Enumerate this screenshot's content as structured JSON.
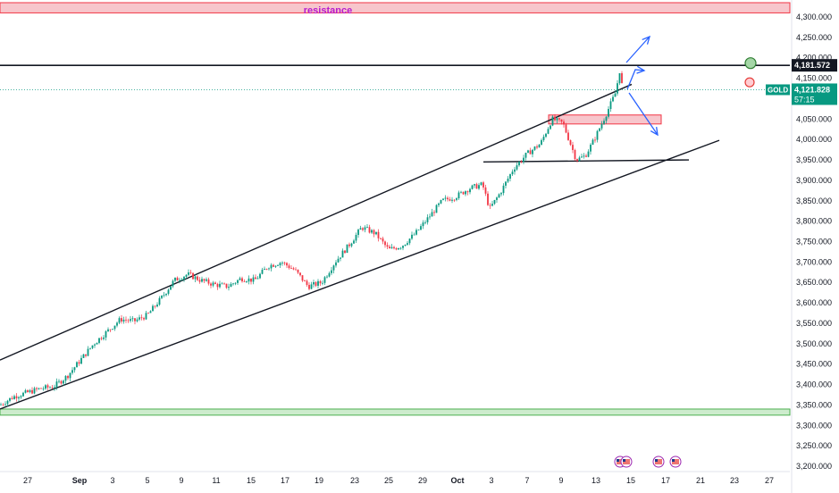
{
  "chart_data": {
    "type": "candlestick",
    "symbol": "GOLD",
    "ylim": [
      3200,
      4350
    ],
    "y_ticks": [
      "4,300.000",
      "4,250.000",
      "4,200.000",
      "4,150.000",
      "4,100.000",
      "4,050.000",
      "4,000.000",
      "3,950.000",
      "3,900.000",
      "3,850.000",
      "3,800.000",
      "3,750.000",
      "3,700.000",
      "3,650.000",
      "3,600.000",
      "3,550.000",
      "3,500.000",
      "3,450.000",
      "3,400.000",
      "3,350.000",
      "3,300.000",
      "3,250.000",
      "3,200.000"
    ],
    "x_ticks": [
      "27",
      "Sep",
      "3",
      "5",
      "9",
      "11",
      "15",
      "17",
      "19",
      "23",
      "25",
      "29",
      "Oct",
      "3",
      "7",
      "9",
      "13",
      "15",
      "17",
      "21",
      "23",
      "27"
    ],
    "horizontal_line": {
      "price": 4181.572,
      "label": "4,181.572"
    },
    "current_price": {
      "price": 4121.828,
      "label": "4,121.828",
      "countdown": "57:15",
      "symbol": "GOLD"
    },
    "zones": [
      {
        "name": "resistance",
        "label": "resistance",
        "low": 4310,
        "high": 4335,
        "color": "#f7c6cc"
      },
      {
        "name": "support",
        "label": "",
        "low": 3325,
        "high": 3340,
        "color": "#cdeccd"
      },
      {
        "name": "retest",
        "label": "",
        "low": 4038,
        "high": 4060,
        "color": "#f7c6cc"
      }
    ],
    "trendlines": [
      {
        "name": "upper-channel",
        "from": [
          0,
          3460
        ],
        "to": [
          707,
          4135
        ]
      },
      {
        "name": "lower-channel",
        "from": [
          0,
          3340
        ],
        "to": [
          805,
          3998
        ]
      },
      {
        "name": "flat-support",
        "from": [
          541,
          3945
        ],
        "to": [
          771,
          3950
        ]
      }
    ],
    "candle_path": [
      [
        0,
        3350
      ],
      [
        15,
        3370
      ],
      [
        30,
        3380
      ],
      [
        45,
        3390
      ],
      [
        60,
        3395
      ],
      [
        75,
        3420
      ],
      [
        90,
        3460
      ],
      [
        105,
        3500
      ],
      [
        120,
        3530
      ],
      [
        135,
        3560
      ],
      [
        150,
        3555
      ],
      [
        165,
        3570
      ],
      [
        180,
        3610
      ],
      [
        195,
        3655
      ],
      [
        210,
        3670
      ],
      [
        225,
        3655
      ],
      [
        240,
        3645
      ],
      [
        255,
        3640
      ],
      [
        270,
        3660
      ],
      [
        285,
        3655
      ],
      [
        300,
        3690
      ],
      [
        315,
        3700
      ],
      [
        330,
        3680
      ],
      [
        345,
        3640
      ],
      [
        360,
        3650
      ],
      [
        375,
        3700
      ],
      [
        390,
        3740
      ],
      [
        405,
        3785
      ],
      [
        420,
        3770
      ],
      [
        435,
        3730
      ],
      [
        450,
        3740
      ],
      [
        465,
        3770
      ],
      [
        480,
        3810
      ],
      [
        495,
        3850
      ],
      [
        510,
        3860
      ],
      [
        525,
        3880
      ],
      [
        540,
        3890
      ],
      [
        548,
        3830
      ],
      [
        560,
        3870
      ],
      [
        575,
        3930
      ],
      [
        590,
        3965
      ],
      [
        605,
        3990
      ],
      [
        618,
        4050
      ],
      [
        630,
        4040
      ],
      [
        645,
        3950
      ],
      [
        655,
        3960
      ],
      [
        665,
        4000
      ],
      [
        678,
        4060
      ],
      [
        690,
        4120
      ],
      [
        693,
        4175
      ],
      [
        697,
        4121
      ]
    ],
    "signal_circles": [
      {
        "color": "green",
        "price": 4187
      },
      {
        "color": "red",
        "price": 4140
      }
    ],
    "scenario_arrows": [
      "bullish-continuation",
      "bullish-retest",
      "bearish-pullback"
    ],
    "colors": {
      "up": "#089981",
      "down": "#f23645",
      "resistance": "#f23645",
      "support": "#4caf50",
      "arrows": "#2962ff"
    }
  }
}
